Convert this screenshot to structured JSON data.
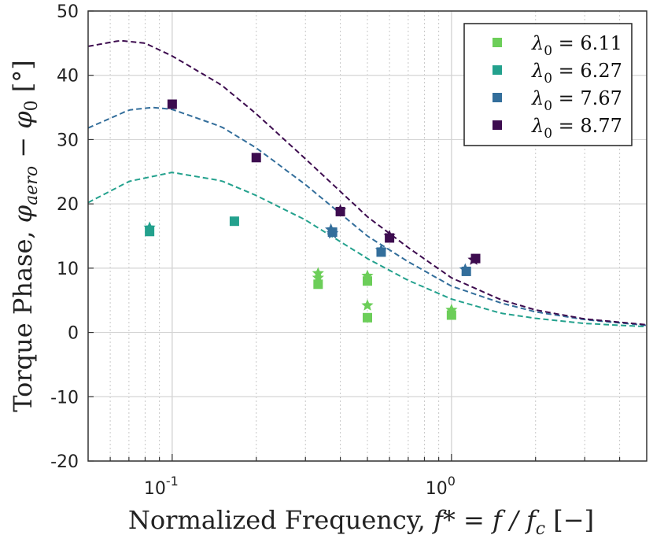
{
  "chart_data": {
    "type": "scatter",
    "xscale": "log",
    "xlim": [
      0.05,
      5
    ],
    "ylim": [
      -20,
      50
    ],
    "yticks": [
      -20,
      -10,
      0,
      10,
      20,
      30,
      40,
      50
    ],
    "ytick_labels": [
      "-20",
      "-10",
      "0",
      "10",
      "20",
      "30",
      "40",
      "50"
    ],
    "xticks_major": [
      0.1,
      1
    ],
    "xtick_labels": [
      {
        "base": "10",
        "exp": "-1"
      },
      {
        "base": "10",
        "exp": "0"
      }
    ],
    "xlabel": {
      "prefix": "Normalized Frequency, ",
      "math": "f* = f / f",
      "sub": "c",
      "suffix": " [−]"
    },
    "ylabel": {
      "prefix": "Torque Phase, ",
      "phi1": "φ",
      "sub1": "aero",
      "mid": " − ",
      "phi2": "φ",
      "sub2": "0",
      "suffix": " [°]"
    },
    "grid": true,
    "legend_position": "top-right",
    "series": [
      {
        "name": "λ0 = 6.11",
        "lambda": "λ",
        "sub": "0",
        "value": "= 6.11",
        "color": "#6cce59",
        "squares": [
          [
            0.333,
            7.5
          ],
          [
            0.5,
            2.3
          ],
          [
            1.0,
            2.7
          ],
          [
            0.5,
            8.0
          ]
        ],
        "stars": [
          [
            0.333,
            9.2
          ],
          [
            0.333,
            8.5
          ],
          [
            0.5,
            8.8
          ],
          [
            0.5,
            4.2
          ],
          [
            1.0,
            3.5
          ]
        ],
        "curve": null
      },
      {
        "name": "λ0 = 6.27",
        "lambda": "λ",
        "sub": "0",
        "value": "= 6.27",
        "color": "#23a18d",
        "squares": [
          [
            0.083,
            15.7
          ],
          [
            0.167,
            17.3
          ]
        ],
        "stars": [
          [
            0.083,
            16.3
          ]
        ],
        "curve": {
          "peak_x": 0.1,
          "peak_y": 24.9,
          "samples": [
            [
              0.05,
              20.2
            ],
            [
              0.07,
              23.5
            ],
            [
              0.1,
              24.9
            ],
            [
              0.15,
              23.6
            ],
            [
              0.2,
              21.3
            ],
            [
              0.3,
              17.5
            ],
            [
              0.5,
              11.5
            ],
            [
              0.7,
              8.1
            ],
            [
              1.0,
              5.2
            ],
            [
              1.5,
              3.0
            ],
            [
              2.0,
              2.2
            ],
            [
              3.0,
              1.4
            ],
            [
              5.0,
              0.9
            ]
          ]
        }
      },
      {
        "name": "λ0 = 7.67",
        "lambda": "λ",
        "sub": "0",
        "value": "= 7.67",
        "color": "#336e9b",
        "squares": [
          [
            0.375,
            15.6
          ],
          [
            0.56,
            12.5
          ],
          [
            1.13,
            9.5
          ]
        ],
        "stars": [
          [
            0.37,
            16.0
          ],
          [
            0.375,
            15.4
          ],
          [
            0.56,
            12.8
          ],
          [
            1.12,
            9.8
          ]
        ],
        "curve": {
          "peak_x": 0.085,
          "peak_y": 35.0,
          "samples": [
            [
              0.05,
              31.8
            ],
            [
              0.07,
              34.6
            ],
            [
              0.085,
              35.0
            ],
            [
              0.1,
              34.7
            ],
            [
              0.15,
              32.0
            ],
            [
              0.2,
              28.7
            ],
            [
              0.3,
              23.0
            ],
            [
              0.5,
              15.0
            ],
            [
              0.7,
              11.0
            ],
            [
              1.0,
              7.2
            ],
            [
              1.5,
              4.6
            ],
            [
              2.0,
              3.2
            ],
            [
              3.0,
              2.0
            ],
            [
              5.0,
              1.1
            ]
          ]
        }
      },
      {
        "name": "λ0 = 8.77",
        "lambda": "λ",
        "sub": "0",
        "value": "= 8.77",
        "color": "#3d0c4f",
        "squares": [
          [
            0.1,
            35.5
          ],
          [
            0.2,
            27.2
          ],
          [
            0.4,
            18.8
          ],
          [
            0.6,
            14.7
          ],
          [
            1.22,
            11.5
          ]
        ],
        "stars": [
          [
            0.4,
            19.0
          ],
          [
            0.6,
            15.0
          ],
          [
            1.2,
            11.3
          ]
        ],
        "curve": {
          "peak_x": 0.065,
          "peak_y": 45.4,
          "samples": [
            [
              0.05,
              44.5
            ],
            [
              0.065,
              45.4
            ],
            [
              0.08,
              45.0
            ],
            [
              0.1,
              43.0
            ],
            [
              0.15,
              38.5
            ],
            [
              0.2,
              34.0
            ],
            [
              0.3,
              27.0
            ],
            [
              0.5,
              18.0
            ],
            [
              0.7,
              13.2
            ],
            [
              1.0,
              8.5
            ],
            [
              1.5,
              5.1
            ],
            [
              2.0,
              3.5
            ],
            [
              3.0,
              2.1
            ],
            [
              5.0,
              1.2
            ]
          ]
        }
      }
    ]
  }
}
